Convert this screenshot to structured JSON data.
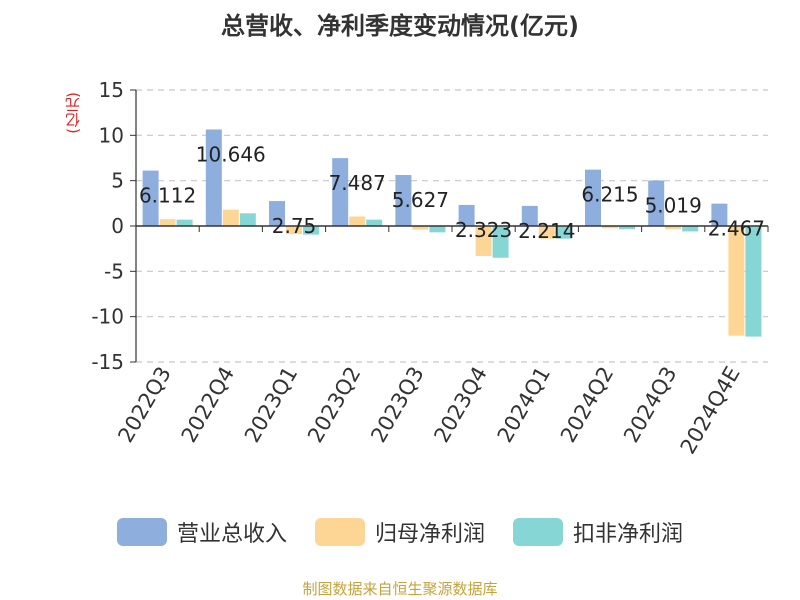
{
  "chart_data": {
    "type": "bar",
    "title": "总营收、净利季度变动情况(亿元)",
    "ylabel": "(亿元)",
    "categories": [
      "2022Q3",
      "2022Q4",
      "2023Q1",
      "2023Q2",
      "2023Q3",
      "2023Q4",
      "2024Q1",
      "2024Q2",
      "2024Q3",
      "2024Q4E"
    ],
    "ylim": [
      -15,
      15
    ],
    "yticks": [
      15,
      10,
      5,
      0,
      -5,
      -10,
      -15
    ],
    "grid": true,
    "legend_position": "bottom",
    "series": [
      {
        "name": "营业总收入",
        "color": "#8eaedd",
        "values": [
          6.112,
          10.646,
          2.75,
          7.487,
          5.627,
          2.323,
          2.214,
          6.215,
          5.019,
          2.467
        ],
        "labels": [
          "6.112",
          "10.646",
          "2.75",
          "7.487",
          "5.627",
          "2.323",
          "2.214",
          "6.215",
          "5.019",
          "2.467"
        ]
      },
      {
        "name": "归母净利润",
        "color": "#fdd595",
        "values": [
          0.75,
          1.8,
          -0.9,
          1.05,
          -0.4,
          -3.3,
          -1.4,
          -0.25,
          -0.35,
          -12.1
        ]
      },
      {
        "name": "扣非净利润",
        "color": "#87d6d6",
        "values": [
          0.7,
          1.4,
          -0.95,
          0.7,
          -0.7,
          -3.5,
          -1.4,
          -0.35,
          -0.6,
          -12.2
        ]
      }
    ]
  },
  "source": "制图数据来自恒生聚源数据库"
}
